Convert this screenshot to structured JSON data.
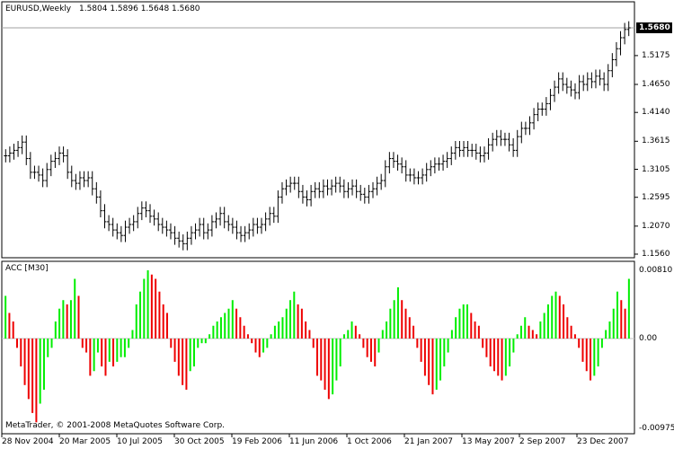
{
  "price_panel": {
    "symbol_label": "EURUSD,Weekly",
    "ohlc": "1.5804 1.5896 1.5648 1.5680",
    "last_price_tag": "1.5680"
  },
  "indicator_panel": {
    "title": "ACC [M30]"
  },
  "copyright": "MetaTrader, © 2001-2008 MetaQuotes Software Corp.",
  "colors": {
    "up_bar": "#00ee00",
    "down_bar": "#ee0000",
    "price_bar": "#000000",
    "background": "#ffffff"
  },
  "chart_data": [
    {
      "type": "bar",
      "subtype": "ohlc",
      "title": "EURUSD,Weekly",
      "ylim": [
        1.156,
        1.568
      ],
      "y_ticks": [
        "1.5680",
        "1.5175",
        "1.4650",
        "1.4140",
        "1.3615",
        "1.3105",
        "1.2595",
        "1.2070",
        "1.1560"
      ],
      "x_ticks": [
        "28 Nov 2004",
        "20 Mar 2005",
        "10 Jul 2005",
        "30 Oct 2005",
        "19 Feb 2006",
        "11 Jun 2006",
        "1 Oct 2006",
        "21 Jan 2007",
        "13 May 2007",
        "2 Sep 2007",
        "23 Dec 2007"
      ],
      "close_series": [
        1.335,
        1.34,
        1.345,
        1.35,
        1.36,
        1.33,
        1.305,
        1.305,
        1.3,
        1.29,
        1.31,
        1.325,
        1.33,
        1.34,
        1.335,
        1.305,
        1.29,
        1.285,
        1.295,
        1.29,
        1.295,
        1.275,
        1.26,
        1.235,
        1.215,
        1.21,
        1.2,
        1.195,
        1.19,
        1.205,
        1.21,
        1.215,
        1.23,
        1.24,
        1.235,
        1.225,
        1.22,
        1.21,
        1.205,
        1.2,
        1.195,
        1.185,
        1.18,
        1.175,
        1.185,
        1.195,
        1.2,
        1.21,
        1.195,
        1.2,
        1.215,
        1.22,
        1.23,
        1.215,
        1.21,
        1.205,
        1.195,
        1.19,
        1.195,
        1.2,
        1.21,
        1.205,
        1.21,
        1.22,
        1.23,
        1.225,
        1.26,
        1.275,
        1.28,
        1.285,
        1.285,
        1.27,
        1.26,
        1.255,
        1.27,
        1.275,
        1.27,
        1.28,
        1.275,
        1.28,
        1.285,
        1.28,
        1.27,
        1.275,
        1.28,
        1.27,
        1.265,
        1.26,
        1.27,
        1.275,
        1.285,
        1.29,
        1.315,
        1.33,
        1.325,
        1.32,
        1.315,
        1.3,
        1.3,
        1.295,
        1.295,
        1.3,
        1.31,
        1.315,
        1.32,
        1.32,
        1.325,
        1.33,
        1.34,
        1.35,
        1.345,
        1.35,
        1.345,
        1.345,
        1.34,
        1.335,
        1.34,
        1.355,
        1.365,
        1.37,
        1.365,
        1.365,
        1.355,
        1.345,
        1.37,
        1.385,
        1.385,
        1.395,
        1.41,
        1.42,
        1.42,
        1.43,
        1.445,
        1.46,
        1.475,
        1.465,
        1.46,
        1.455,
        1.45,
        1.47,
        1.465,
        1.475,
        1.47,
        1.48,
        1.475,
        1.465,
        1.49,
        1.51,
        1.53,
        1.55,
        1.565,
        1.568
      ]
    },
    {
      "type": "bar",
      "subtype": "histogram",
      "title": "ACC [M30]",
      "ylim": [
        -0.00975,
        0.0081
      ],
      "y_ticks": [
        "0.00810",
        "0.00",
        "-0.00975"
      ],
      "values": [
        0.005,
        0.003,
        0.002,
        -0.001,
        -0.003,
        -0.005,
        -0.0065,
        -0.008,
        -0.009,
        -0.007,
        -0.0055,
        -0.002,
        -0.001,
        0.002,
        0.0035,
        0.0045,
        0.004,
        0.0045,
        0.007,
        0.005,
        -0.001,
        -0.0015,
        -0.004,
        -0.0035,
        -0.0015,
        -0.003,
        -0.004,
        -0.0025,
        -0.003,
        -0.0025,
        -0.002,
        -0.002,
        -0.001,
        0.001,
        0.004,
        0.0055,
        0.007,
        0.008,
        0.0075,
        0.007,
        0.0055,
        0.004,
        0.003,
        -0.001,
        -0.0025,
        -0.004,
        -0.005,
        -0.0055,
        -0.0035,
        -0.003,
        -0.001,
        -0.0005,
        -0.0005,
        0.0005,
        0.0015,
        0.002,
        0.0025,
        0.003,
        0.0035,
        0.0045,
        0.0035,
        0.0025,
        0.0015,
        0.0005,
        -0.0005,
        -0.0015,
        -0.002,
        -0.0015,
        -0.001,
        0.0005,
        0.0015,
        0.002,
        0.0025,
        0.0035,
        0.0045,
        0.0055,
        0.004,
        0.0035,
        0.002,
        0.001,
        -0.001,
        -0.004,
        -0.0045,
        -0.0055,
        -0.0065,
        -0.006,
        -0.0045,
        -0.003,
        0.0005,
        0.001,
        0.002,
        0.0015,
        0.0005,
        -0.001,
        -0.002,
        -0.0025,
        -0.003,
        -0.0015,
        0.001,
        0.002,
        0.0035,
        0.0045,
        0.006,
        0.0045,
        0.0035,
        0.0025,
        0.0015,
        -0.001,
        -0.0025,
        -0.004,
        -0.005,
        -0.006,
        -0.0055,
        -0.0045,
        -0.003,
        -0.0015,
        0.001,
        0.0025,
        0.0035,
        0.004,
        0.004,
        0.003,
        0.002,
        0.0015,
        -0.001,
        -0.002,
        -0.003,
        -0.0035,
        -0.004,
        -0.0045,
        -0.004,
        -0.003,
        -0.0015,
        0.0005,
        0.0015,
        0.0025,
        0.0015,
        0.001,
        0.0005,
        0.002,
        0.003,
        0.004,
        0.005,
        0.0055,
        0.005,
        0.004,
        0.0025,
        0.0015,
        0.0005,
        -0.001,
        -0.0025,
        -0.0035,
        -0.0045,
        -0.004,
        -0.003,
        -0.001,
        0.001,
        0.002,
        0.0035,
        0.0055,
        0.0045,
        0.0035,
        0.007
      ]
    }
  ]
}
